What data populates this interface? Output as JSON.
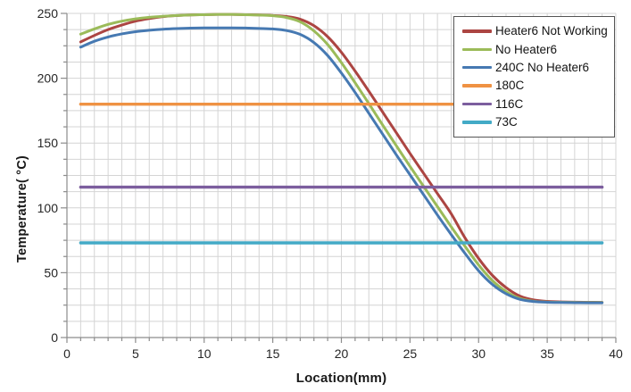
{
  "chart_data": {
    "type": "line",
    "xlabel": "Location(mm)",
    "ylabel": "Temperature( °C)",
    "xlim": [
      0,
      40
    ],
    "ylim": [
      0,
      250
    ],
    "xticks": [
      0,
      5,
      10,
      15,
      20,
      25,
      30,
      35,
      40
    ],
    "yticks": [
      0,
      50,
      100,
      150,
      200,
      250
    ],
    "x_minor_step": 1,
    "y_minor_step": 12.5,
    "grid": true,
    "legend_position": "top-right-inside",
    "x": [
      1,
      2,
      3,
      4,
      5,
      6,
      7,
      8,
      9,
      10,
      11,
      12,
      13,
      14,
      15,
      16,
      17,
      18,
      19,
      20,
      21,
      22,
      23,
      24,
      25,
      26,
      27,
      28,
      29,
      30,
      31,
      32,
      33,
      34,
      35,
      36,
      37,
      38,
      39
    ],
    "series": [
      {
        "name": "Heater6 Not Working",
        "color": "#AC4542",
        "values": [
          228,
          233,
          237.5,
          241,
          244,
          246,
          247.5,
          248.3,
          248.8,
          249,
          249.2,
          249.2,
          249,
          248.8,
          248.4,
          247.6,
          245.5,
          240.5,
          232,
          220,
          205.5,
          190,
          174,
          158,
          142,
          126.5,
          111,
          95.5,
          77,
          61,
          48,
          38.5,
          32,
          29,
          27.9,
          27.5,
          27.3,
          27.2,
          27.1
        ]
      },
      {
        "name": "No Heater6",
        "color": "#9BBB59",
        "values": [
          234,
          238,
          241.5,
          244,
          245.8,
          247,
          247.8,
          248.4,
          248.8,
          249,
          249.2,
          249.2,
          249,
          248.7,
          248.2,
          246.8,
          243.5,
          236.5,
          226,
          212,
          196.5,
          180.5,
          164,
          148,
          132,
          116.5,
          101,
          85.5,
          70.5,
          56,
          44,
          35.5,
          30.2,
          28,
          27.4,
          27.2,
          27.1,
          27,
          27
        ]
      },
      {
        "name": "240C No Heater6",
        "color": "#4679B2",
        "values": [
          224,
          228.5,
          231.8,
          234.2,
          235.9,
          237,
          237.8,
          238.3,
          238.6,
          238.8,
          238.8,
          238.8,
          238.7,
          238.4,
          238,
          236.8,
          233.8,
          227.5,
          217.5,
          204,
          189,
          173,
          157,
          141,
          125.5,
          110,
          94.5,
          79.5,
          65,
          51.5,
          41,
          33.8,
          29.5,
          27.8,
          27.2,
          27,
          26.9,
          26.8,
          26.8
        ]
      },
      {
        "name": "180C",
        "color": "#EF9243",
        "const": 180,
        "x_range": [
          1,
          39
        ]
      },
      {
        "name": "116C",
        "color": "#7C5E9E",
        "const": 116,
        "x_range": [
          1,
          39
        ]
      },
      {
        "name": "73C",
        "color": "#43AAC6",
        "const": 73,
        "x_range": [
          1,
          39
        ]
      }
    ],
    "style": {
      "grid_color": "#D4D4D4",
      "axis_color": "#8C8C8C",
      "tick_label_color": "#262626",
      "curve_width": 3,
      "const_line_width": 3.4
    }
  }
}
